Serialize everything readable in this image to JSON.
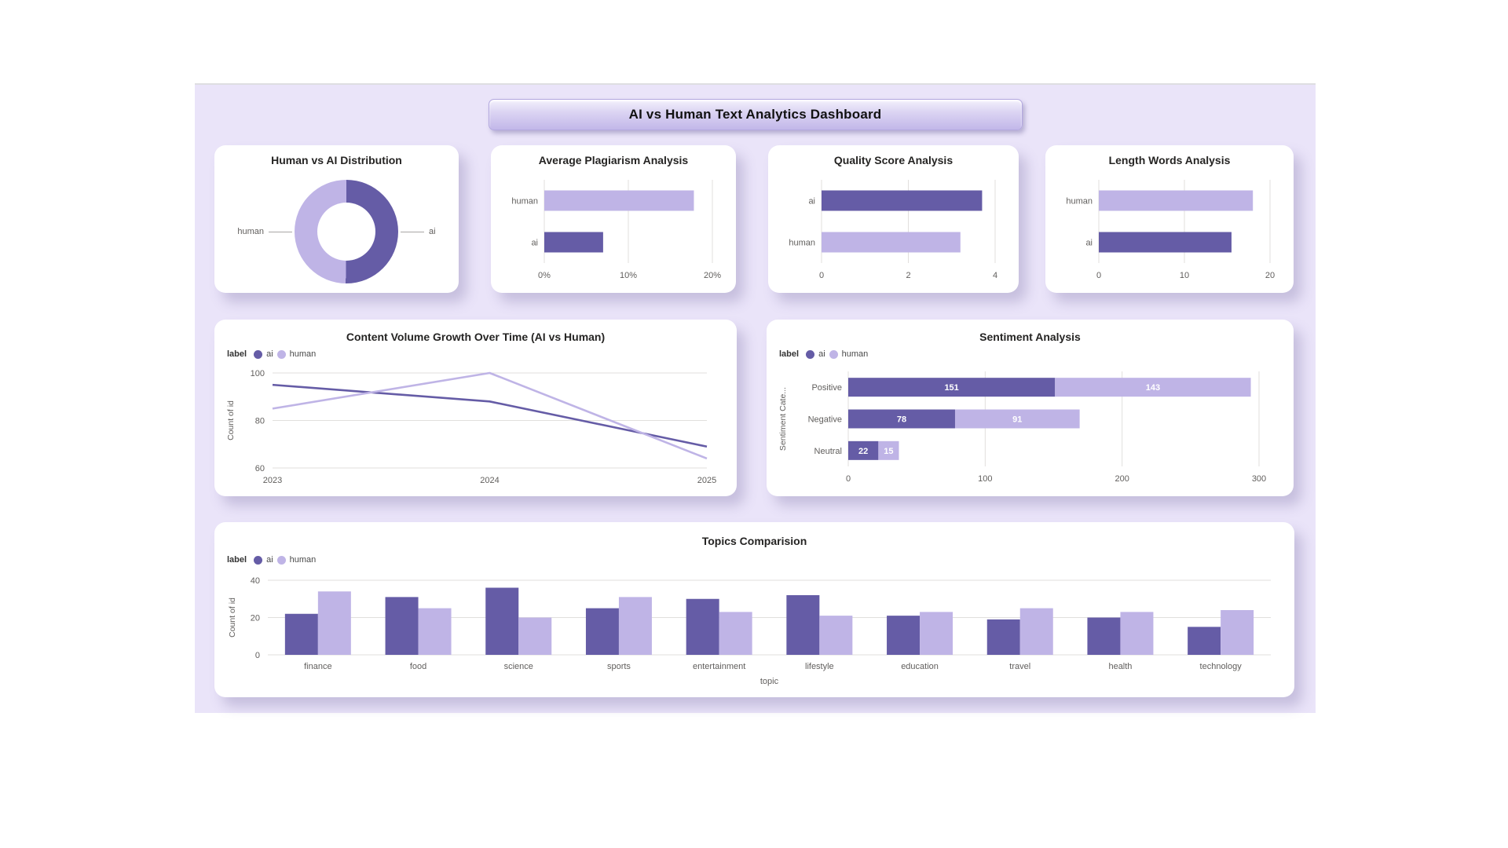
{
  "page": {
    "banner_title": "AI vs Human Text Analytics Dashboard"
  },
  "colors": {
    "ai": "#655CA6",
    "human": "#BFB4E6",
    "grid": "#E1DFDD",
    "axis_text": "#605E5C",
    "title_text": "#252423",
    "panel_bg": "#EAE4F9",
    "card_bg": "#FFFFFF",
    "bar_value_text": "#FFFFFF"
  },
  "legend": {
    "label": "label",
    "ai": "ai",
    "human": "human"
  },
  "chart_data": [
    {
      "id": "distribution",
      "type": "pie",
      "subtype": "donut",
      "title": "Human vs AI Distribution",
      "slices": [
        {
          "label": "ai",
          "pct": 50.2
        },
        {
          "label": "human",
          "pct": 49.8
        }
      ]
    },
    {
      "id": "plagiarism",
      "type": "bar",
      "subtype": "horizontal",
      "title": "Average Plagiarism Analysis",
      "categories": [
        "human",
        "ai"
      ],
      "values": [
        17.8,
        7
      ],
      "xmax": 20,
      "xticks": [
        {
          "v": 0,
          "label": "0%"
        },
        {
          "v": 10,
          "label": "10%"
        },
        {
          "v": 20,
          "label": "20%"
        }
      ]
    },
    {
      "id": "quality",
      "type": "bar",
      "subtype": "horizontal",
      "title": "Quality Score Analysis",
      "categories": [
        "ai",
        "human"
      ],
      "values": [
        3.7,
        3.2
      ],
      "xmax": 4,
      "xticks": [
        {
          "v": 0,
          "label": "0"
        },
        {
          "v": 2,
          "label": "2"
        },
        {
          "v": 4,
          "label": "4"
        }
      ]
    },
    {
      "id": "length",
      "type": "bar",
      "subtype": "horizontal",
      "title": "Length Words Analysis",
      "categories": [
        "human",
        "ai"
      ],
      "values": [
        18,
        15.5
      ],
      "xmax": 20,
      "xticks": [
        {
          "v": 0,
          "label": "0"
        },
        {
          "v": 10,
          "label": "10"
        },
        {
          "v": 20,
          "label": "20"
        }
      ]
    },
    {
      "id": "growth",
      "type": "line",
      "title": "Content Volume Growth Over Time (AI vs Human)",
      "x": [
        "2023",
        "2024",
        "2025"
      ],
      "series": [
        {
          "name": "ai",
          "values": [
            95,
            88,
            69
          ]
        },
        {
          "name": "human",
          "values": [
            85,
            100,
            64
          ]
        }
      ],
      "ylabel": "Count of id",
      "yticks": [
        100,
        80,
        60
      ],
      "ylim": [
        60,
        100
      ],
      "legend_position": "top-left",
      "grid": true
    },
    {
      "id": "sentiment",
      "type": "bar",
      "subtype": "stacked-horizontal",
      "title": "Sentiment Analysis",
      "categories": [
        "Positive",
        "Negative",
        "Neutral"
      ],
      "series": [
        {
          "name": "ai",
          "values": [
            151,
            78,
            22
          ]
        },
        {
          "name": "human",
          "values": [
            143,
            91,
            15
          ]
        }
      ],
      "xmax": 300,
      "xticks": [
        {
          "v": 0,
          "label": "0"
        },
        {
          "v": 100,
          "label": "100"
        },
        {
          "v": 200,
          "label": "200"
        },
        {
          "v": 300,
          "label": "300"
        }
      ],
      "ylabel": "Sentiment Cate...",
      "legend_position": "top-left",
      "show_values": true
    },
    {
      "id": "topics",
      "type": "bar",
      "subtype": "grouped-vertical",
      "title": "Topics Comparision",
      "categories": [
        "finance",
        "food",
        "science",
        "sports",
        "entertainment",
        "lifestyle",
        "education",
        "travel",
        "health",
        "technology"
      ],
      "series": [
        {
          "name": "ai",
          "values": [
            22,
            31,
            36,
            25,
            30,
            32,
            21,
            19,
            20,
            15
          ]
        },
        {
          "name": "human",
          "values": [
            34,
            25,
            20,
            31,
            23,
            21,
            23,
            25,
            23,
            24
          ]
        }
      ],
      "ymax": 40,
      "yticks": [
        0,
        20,
        40
      ],
      "ylabel": "Count of id",
      "xlabel": "topic",
      "legend_position": "top-left",
      "grid": true
    }
  ]
}
